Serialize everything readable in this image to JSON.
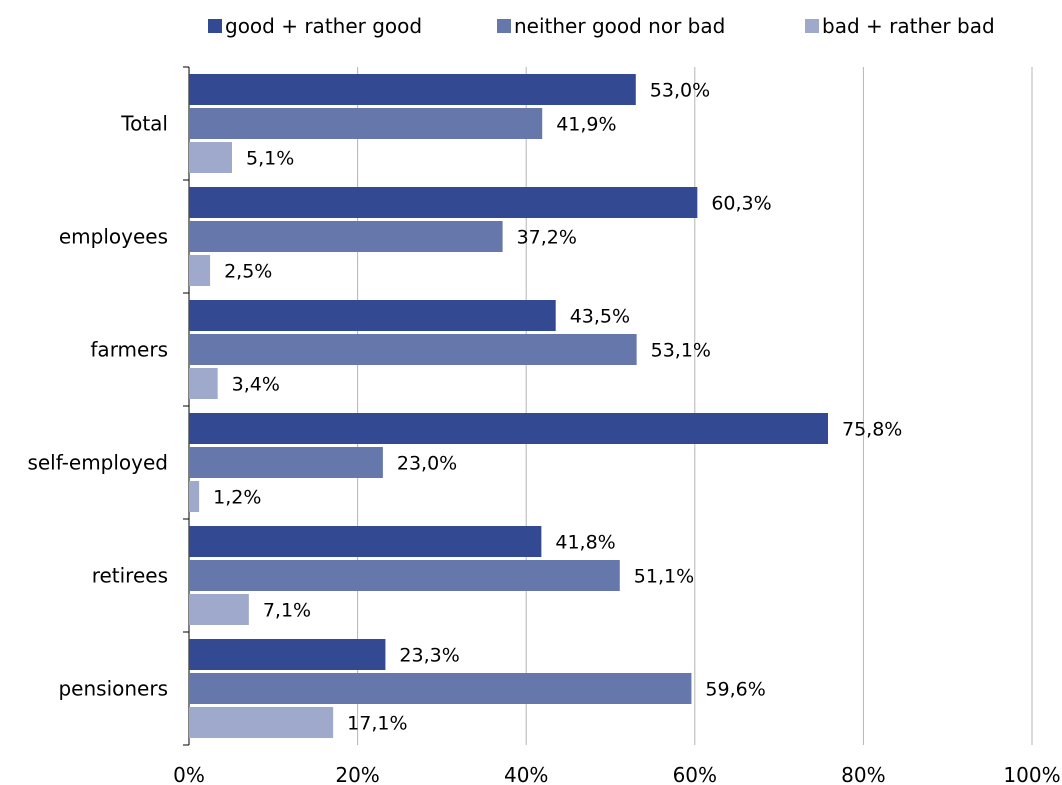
{
  "chart_data": {
    "type": "bar",
    "orientation": "horizontal",
    "title": "",
    "xlabel": "",
    "ylabel": "",
    "categories": [
      "Total",
      "employees",
      "farmers",
      "self-employed",
      "retirees",
      "pensioners"
    ],
    "series": [
      {
        "name": "good + rather good",
        "color": "#334a92",
        "values": [
          53.0,
          60.3,
          43.5,
          75.8,
          41.8,
          23.3
        ],
        "labels": [
          "53,0%",
          "60,3%",
          "43,5%",
          "75,8%",
          "41,8%",
          "23,3%"
        ]
      },
      {
        "name": "neither good nor bad",
        "color": "#6577ab",
        "values": [
          41.9,
          37.2,
          53.1,
          23.0,
          51.1,
          59.6
        ],
        "labels": [
          "41,9%",
          "37,2%",
          "53,1%",
          "23,0%",
          "51,1%",
          "59,6%"
        ]
      },
      {
        "name": "bad + rather bad",
        "color": "#9ea9cb",
        "values": [
          5.1,
          2.5,
          3.4,
          1.2,
          7.1,
          17.1
        ],
        "labels": [
          "5,1%",
          "2,5%",
          "3,4%",
          "1,2%",
          "7,1%",
          "17,1%"
        ]
      }
    ],
    "xlim": [
      0,
      100
    ],
    "xticks": [
      0,
      20,
      40,
      60,
      80,
      100
    ],
    "xtick_labels": [
      "0%",
      "20%",
      "40%",
      "60%",
      "80%",
      "100%"
    ],
    "grid": "vertical",
    "legend": "top"
  }
}
